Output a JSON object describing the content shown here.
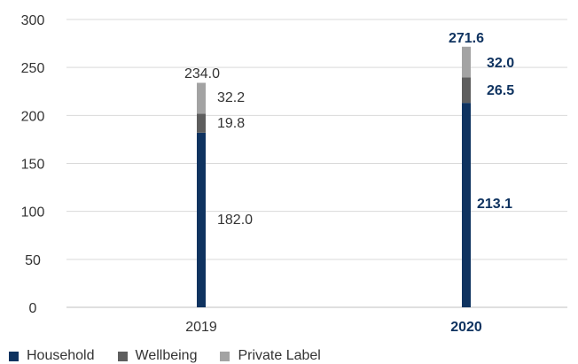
{
  "chart_data": {
    "type": "bar",
    "stacked": true,
    "categories": [
      "2019",
      "2020"
    ],
    "highlight_category": "2020",
    "series": [
      {
        "name": "Household",
        "values": [
          182.0,
          213.1
        ],
        "labels": [
          "182.0",
          "213.1"
        ],
        "color": "#0f3360"
      },
      {
        "name": "Wellbeing",
        "values": [
          19.8,
          26.5
        ],
        "labels": [
          "19.8",
          "26.5"
        ],
        "color": "#5e5e5e"
      },
      {
        "name": "Private Label",
        "values": [
          32.2,
          32.0
        ],
        "labels": [
          "32.2",
          "32.0"
        ],
        "color": "#a3a3a3"
      }
    ],
    "totals": [
      234.0,
      271.6
    ],
    "total_labels": [
      "234.0",
      "271.6"
    ],
    "ylim": [
      0,
      300
    ],
    "yticks": [
      0,
      50,
      100,
      150,
      200,
      250,
      300
    ],
    "ytick_labels": [
      "0",
      "50",
      "100",
      "150",
      "200",
      "250",
      "300"
    ],
    "grid": true,
    "legend_position": "bottom-left",
    "highlight_color": "#0f3360"
  }
}
